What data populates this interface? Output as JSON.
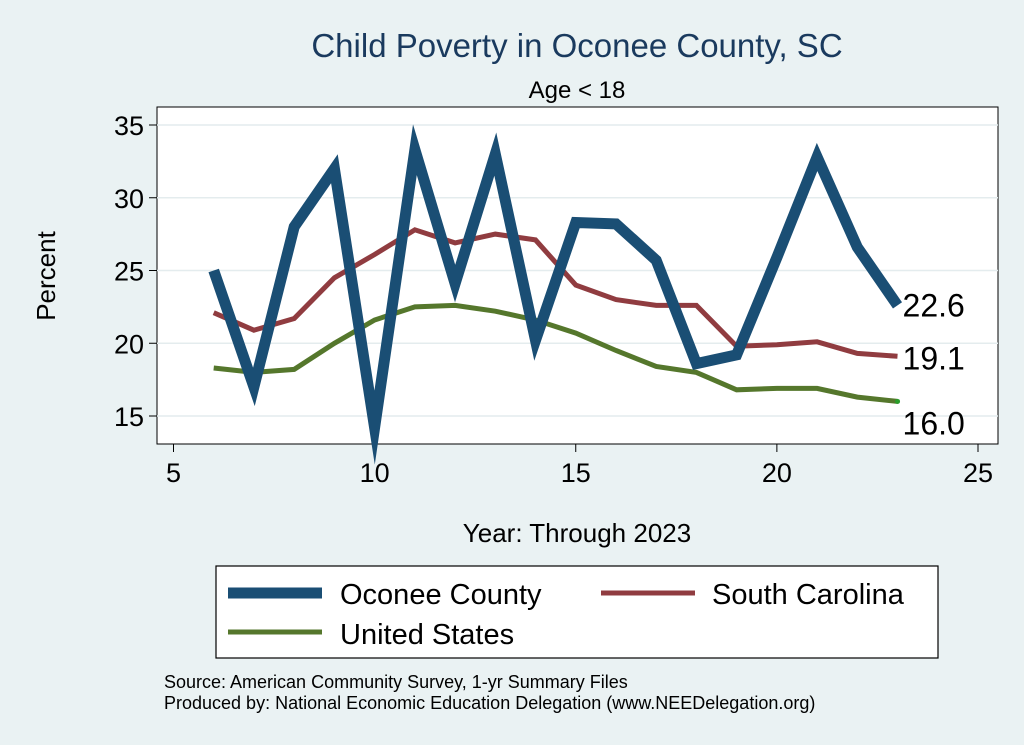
{
  "chart_data": {
    "type": "line",
    "title": "Child Poverty in Oconee County, SC",
    "subtitle": "Age < 18",
    "xlabel": "Year: Through 2023",
    "ylabel": "Percent",
    "xlim": [
      5,
      25
    ],
    "ylim": [
      13,
      36
    ],
    "xticks": [
      5,
      10,
      15,
      20,
      25
    ],
    "yticks": [
      15,
      20,
      25,
      30,
      35
    ],
    "grid": true,
    "legend_position": "bottom",
    "series": [
      {
        "name": "Oconee County",
        "color": "#1a4e74",
        "x": [
          6,
          7,
          8,
          9,
          10,
          11,
          12,
          13,
          14,
          15,
          16,
          17,
          18,
          19,
          20,
          21,
          22,
          23
        ],
        "values": [
          25.0,
          17.0,
          28.0,
          32.0,
          14.2,
          33.3,
          24.1,
          33.0,
          20.2,
          28.3,
          28.2,
          25.7,
          18.6,
          19.2,
          25.9,
          32.8,
          26.6,
          22.6
        ],
        "end_label": "22.6"
      },
      {
        "name": "South Carolina",
        "color": "#903c40",
        "x": [
          6,
          7,
          8,
          9,
          10,
          11,
          12,
          13,
          14,
          15,
          16,
          17,
          18,
          19,
          20,
          21,
          22,
          23
        ],
        "values": [
          22.1,
          20.9,
          21.7,
          24.5,
          26.1,
          27.8,
          26.9,
          27.5,
          27.1,
          24.0,
          23.0,
          22.6,
          22.6,
          19.8,
          19.9,
          20.1,
          19.3,
          19.1
        ],
        "end_label": "19.1"
      },
      {
        "name": "United States",
        "color": "#55772c",
        "x": [
          6,
          7,
          8,
          9,
          10,
          11,
          12,
          13,
          14,
          15,
          16,
          17,
          18,
          19,
          20,
          21,
          22,
          23
        ],
        "values": [
          18.3,
          18.0,
          18.2,
          20.0,
          21.6,
          22.5,
          22.6,
          22.2,
          21.6,
          20.7,
          19.5,
          18.4,
          18.0,
          16.8,
          16.9,
          16.9,
          16.3,
          16.0
        ],
        "end_label": "16.0"
      }
    ],
    "notes": [
      "Source: American Community Survey, 1-yr Summary Files",
      "Produced by: National Economic Education Delegation (www.NEEDelegation.org)"
    ]
  }
}
